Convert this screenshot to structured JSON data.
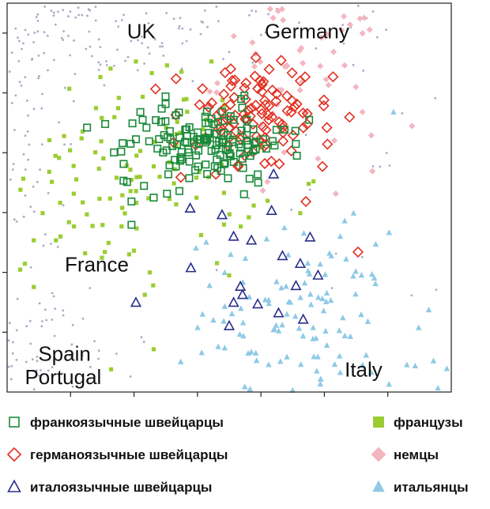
{
  "chart_data": {
    "type": "scatter",
    "title": "",
    "xlabel": "",
    "ylabel": "",
    "xlim": [
      0,
      100
    ],
    "ylim": [
      0,
      100
    ],
    "region_labels": [
      {
        "text": "UK",
        "x": 27,
        "y": 91
      },
      {
        "text": "Germany",
        "x": 58,
        "y": 91
      },
      {
        "text": "France",
        "x": 13,
        "y": 31
      },
      {
        "text": "Spain",
        "x": 7,
        "y": 8
      },
      {
        "text": "Portugal",
        "x": 4,
        "y": 2
      },
      {
        "text": "Italy",
        "x": 76,
        "y": 4
      }
    ],
    "series": [
      {
        "name": "франкоязычные швейцарцы",
        "marker": "square-open",
        "color": "#1a8a3a",
        "centroid": [
          45,
          64
        ],
        "spread": [
          9,
          5
        ],
        "count": 150,
        "points": [
          [
            18,
            68
          ],
          [
            30,
            72
          ],
          [
            29,
            65
          ],
          [
            27,
            54
          ],
          [
            28,
            49
          ],
          [
            28,
            43
          ],
          [
            33,
            50
          ],
          [
            36,
            51
          ],
          [
            41,
            55
          ],
          [
            43,
            58
          ],
          [
            53,
            60
          ],
          [
            51,
            70
          ],
          [
            68,
            70
          ],
          [
            26,
            64
          ],
          [
            38,
            58
          ],
          [
            48,
            61
          ]
        ]
      },
      {
        "name": "германоязычные швейцарцы",
        "marker": "diamond-open",
        "color": "#e03020",
        "centroid": [
          55,
          70
        ],
        "spread": [
          9,
          7
        ],
        "count": 110,
        "points": [
          [
            56,
            86
          ],
          [
            59,
            83
          ],
          [
            57,
            80
          ],
          [
            66,
            80
          ],
          [
            44,
            78
          ],
          [
            49,
            73
          ],
          [
            55,
            73
          ],
          [
            64,
            72
          ],
          [
            72,
            68
          ],
          [
            62,
            68
          ],
          [
            48,
            68
          ],
          [
            47,
            56
          ],
          [
            52,
            58
          ],
          [
            71,
            58
          ],
          [
            79,
            36
          ],
          [
            64,
            62
          ]
        ]
      },
      {
        "name": "италоязычные швейцарцы",
        "marker": "triangle-open",
        "color": "#2a2e8a",
        "centroid": [
          58,
          34
        ],
        "spread": [
          8,
          8
        ],
        "count": 20,
        "points": [
          [
            60,
            56
          ],
          [
            51,
            40
          ],
          [
            55,
            39
          ],
          [
            62,
            35
          ],
          [
            66,
            33
          ],
          [
            70,
            30
          ],
          [
            53,
            25
          ],
          [
            51,
            23
          ],
          [
            29,
            23
          ],
          [
            50,
            17
          ]
        ]
      },
      {
        "name": "французы",
        "marker": "square-filled",
        "color": "#9acd32",
        "centroid": [
          30,
          56
        ],
        "spread": [
          13,
          13
        ],
        "count": 120,
        "points": [
          [
            6,
            39
          ],
          [
            4,
            33
          ],
          [
            6,
            27
          ],
          [
            11,
            39
          ],
          [
            8,
            46
          ],
          [
            3,
            52
          ],
          [
            15,
            51
          ],
          [
            17,
            67
          ],
          [
            14,
            78
          ],
          [
            20,
            73
          ],
          [
            25,
            73
          ],
          [
            21,
            81
          ],
          [
            29,
            85
          ],
          [
            36,
            84
          ],
          [
            30,
            62
          ],
          [
            44,
            66
          ],
          [
            46,
            85
          ],
          [
            31,
            25
          ],
          [
            33,
            11
          ],
          [
            50,
            30
          ],
          [
            66,
            46
          ],
          [
            12,
            40
          ],
          [
            22,
            36
          ]
        ]
      },
      {
        "name": "немцы",
        "marker": "diamond-filled",
        "color": "#f3b6c0",
        "centroid": [
          66,
          82
        ],
        "spread": [
          9,
          12
        ],
        "count": 60,
        "points": [
          [
            61,
            98
          ],
          [
            56,
            87
          ],
          [
            63,
            84
          ],
          [
            72,
            92
          ],
          [
            76,
            84
          ],
          [
            80,
            72
          ],
          [
            82,
            66
          ],
          [
            70,
            60
          ],
          [
            74,
            51
          ]
        ]
      },
      {
        "name": "итальянцы",
        "marker": "triangle-filled",
        "color": "#8ecae6",
        "centroid": [
          68,
          19
        ],
        "spread": [
          14,
          11
        ],
        "count": 120,
        "points": [
          [
            87,
            72
          ],
          [
            75,
            40
          ],
          [
            76,
            44
          ],
          [
            78,
            46
          ],
          [
            83,
            38
          ],
          [
            86,
            41
          ],
          [
            73,
            35
          ],
          [
            67,
            28
          ],
          [
            71,
            24
          ],
          [
            63,
            20
          ],
          [
            60,
            16
          ],
          [
            49,
            22
          ],
          [
            44,
            20
          ],
          [
            56,
            10
          ],
          [
            63,
            9
          ],
          [
            72,
            12
          ],
          [
            75,
            5
          ],
          [
            82,
            5
          ],
          [
            90,
            7
          ],
          [
            96,
            8
          ],
          [
            99,
            6
          ],
          [
            97,
            1
          ],
          [
            86,
            2
          ]
        ]
      }
    ],
    "background_points": {
      "color": "#a8abc4",
      "count": 320
    },
    "grid": false,
    "legend_position": "bottom"
  },
  "legend": [
    {
      "label": "франкоязычные швейцарцы",
      "marker": "square-open",
      "color": "#1a8a3a"
    },
    {
      "label": "германоязычные швейцарцы",
      "marker": "diamond-open",
      "color": "#e03020"
    },
    {
      "label": "италоязычные швейцарцы",
      "marker": "triangle-open",
      "color": "#2a2e8a"
    },
    {
      "label": "французы",
      "marker": "square-filled",
      "color": "#9acd32"
    },
    {
      "label": "немцы",
      "marker": "diamond-filled",
      "color": "#f3b6c0"
    },
    {
      "label": "итальянцы",
      "marker": "triangle-filled",
      "color": "#8ecae6"
    }
  ]
}
